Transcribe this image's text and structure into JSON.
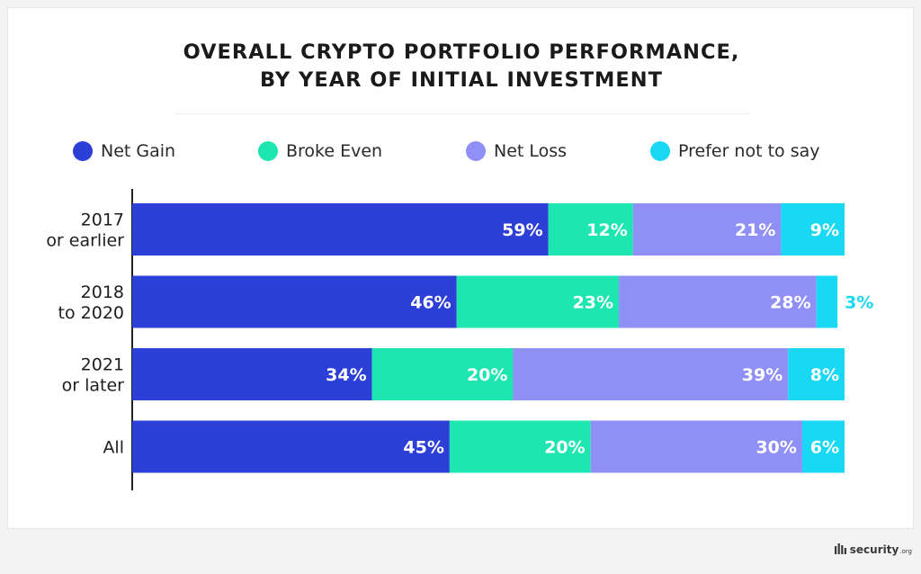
{
  "chart_data": {
    "type": "bar",
    "orientation": "horizontal",
    "stacked": true,
    "title_lines": [
      "OVERALL CRYPTO PORTFOLIO PERFORMANCE,",
      "BY YEAR OF INITIAL INVESTMENT"
    ],
    "categories": [
      [
        "2017",
        "or earlier"
      ],
      [
        "2018",
        "to 2020"
      ],
      [
        "2021",
        "or later"
      ],
      [
        "All"
      ]
    ],
    "series": [
      {
        "name": "Net Gain",
        "color": "#2c3fd6",
        "values": [
          59,
          46,
          34,
          45
        ]
      },
      {
        "name": "Broke Even",
        "color": "#1ee6b0",
        "values": [
          12,
          23,
          20,
          20
        ]
      },
      {
        "name": "Net Loss",
        "color": "#8f8ff5",
        "values": [
          21,
          28,
          39,
          30
        ]
      },
      {
        "name": "Prefer not to say",
        "color": "#19d8f3",
        "values": [
          9,
          3,
          8,
          6
        ]
      }
    ],
    "value_suffix": "%",
    "xlim": [
      0,
      101
    ],
    "legend": "top",
    "grid": false,
    "xlabel": "",
    "ylabel": ""
  },
  "label_color_inside": "#ffffff",
  "brand": {
    "name": "security",
    "tld": ".org"
  }
}
